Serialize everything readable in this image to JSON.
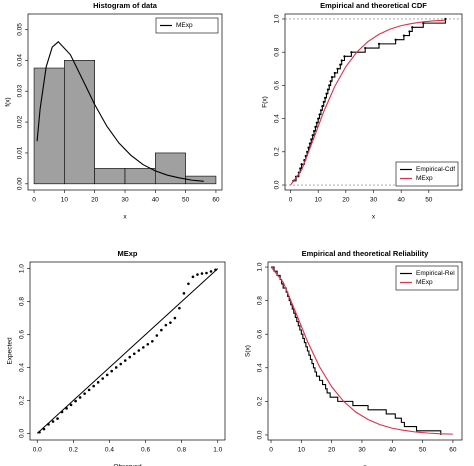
{
  "chart_data": [
    {
      "type": "histogram",
      "title": "Histogram of data",
      "xlabel": "x",
      "ylabel": "f(x)",
      "bins": [
        0,
        10,
        20,
        30,
        40,
        50,
        60
      ],
      "values": [
        0.0375,
        0.04,
        0.005,
        0.005,
        0.01,
        0.0025
      ],
      "color": "#a0a0a0",
      "xlim": [
        -2,
        62
      ],
      "ylim": [
        -0.002,
        0.055
      ],
      "xticks": [
        0,
        10,
        20,
        30,
        40,
        50,
        60
      ],
      "yticks": [
        {
          "value": 0,
          "label": "0.00"
        },
        0.01,
        0.02,
        0.03,
        0.04,
        0.05
      ],
      "series": [
        {
          "name": "MExp",
          "color": "#000000",
          "x": [
            1,
            2,
            4,
            6,
            8,
            12,
            16,
            20,
            24,
            28,
            32,
            36,
            40,
            44,
            48,
            52,
            56
          ],
          "values": [
            0.0138,
            0.0243,
            0.0379,
            0.0443,
            0.046,
            0.0418,
            0.0338,
            0.0257,
            0.0187,
            0.0132,
            0.0092,
            0.0062,
            0.0042,
            0.0028,
            0.0019,
            0.0012,
            0.0008
          ]
        }
      ],
      "legend": "topright"
    },
    {
      "type": "line",
      "title": "Empirical and theoretical CDF",
      "xlabel": "x",
      "ylabel": "F(x)",
      "xlim": [
        -2,
        62
      ],
      "ylim": [
        -0.03,
        1.03
      ],
      "xticks": [
        0,
        10,
        20,
        30,
        40,
        50
      ],
      "yticks": [
        {
          "value": 0,
          "label": "0.0"
        },
        0.2,
        0.4,
        0.6,
        0.8,
        {
          "value": 1,
          "label": "1.0"
        }
      ],
      "reference_lines": "dashed",
      "series": [
        {
          "name": "Empirical-Cdf",
          "color": "#000000",
          "drawstyle": "steps-post",
          "marker": true,
          "x": [
            1,
            2,
            3,
            3.5,
            4,
            5,
            5.5,
            6,
            6.5,
            7,
            7.5,
            8,
            8.5,
            9,
            9.5,
            10,
            10.5,
            11,
            11.5,
            12,
            12.5,
            13,
            13.5,
            14,
            14.5,
            15,
            16,
            17,
            18,
            18.5,
            19.5,
            22,
            27,
            32,
            38,
            41,
            43,
            44,
            48,
            56
          ],
          "values": [
            0.025,
            0.05,
            0.075,
            0.1,
            0.125,
            0.15,
            0.175,
            0.2,
            0.225,
            0.25,
            0.275,
            0.3,
            0.325,
            0.35,
            0.375,
            0.4,
            0.425,
            0.45,
            0.475,
            0.5,
            0.525,
            0.55,
            0.575,
            0.6,
            0.625,
            0.65,
            0.675,
            0.7,
            0.725,
            0.75,
            0.775,
            0.8,
            0.825,
            0.85,
            0.875,
            0.9,
            0.925,
            0.95,
            0.975,
            1
          ]
        },
        {
          "name": "MExp",
          "color": "#e0304a",
          "x": [
            0,
            4,
            8,
            12,
            16,
            20,
            24,
            28,
            32,
            36,
            40,
            44,
            48,
            52,
            56
          ],
          "values": [
            0,
            0.09,
            0.264,
            0.442,
            0.594,
            0.713,
            0.801,
            0.864,
            0.908,
            0.939,
            0.96,
            0.973,
            0.983,
            0.989,
            0.993
          ]
        }
      ],
      "legend": "bottomright"
    },
    {
      "type": "scatter",
      "title": "MExp",
      "xlabel": "Observed",
      "ylabel": "Expected",
      "color": "#000000",
      "xlim": [
        -0.04,
        1.04
      ],
      "ylim": [
        -0.04,
        1.04
      ],
      "xticks": [
        {
          "value": 0,
          "label": "0.0"
        },
        0.2,
        0.4,
        0.6,
        0.8,
        {
          "value": 1,
          "label": "1.0"
        }
      ],
      "yticks": [
        {
          "value": 0,
          "label": "0.0"
        },
        0.2,
        0.4,
        0.6,
        0.8,
        {
          "value": 1,
          "label": "1.0"
        }
      ],
      "reference_lines": "diagonal",
      "x": [
        0.0125,
        0.0375,
        0.0625,
        0.0875,
        0.1125,
        0.1375,
        0.1625,
        0.1875,
        0.2125,
        0.2375,
        0.2625,
        0.2875,
        0.3125,
        0.3375,
        0.3625,
        0.3875,
        0.4125,
        0.4375,
        0.4625,
        0.4875,
        0.5125,
        0.5375,
        0.5625,
        0.5875,
        0.6125,
        0.6375,
        0.6625,
        0.6875,
        0.7125,
        0.7375,
        0.7625,
        0.7875,
        0.8125,
        0.8375,
        0.8625,
        0.8875,
        0.9125,
        0.9375,
        0.9625,
        0.9875
      ],
      "values": [
        0.007,
        0.026,
        0.055,
        0.072,
        0.09,
        0.13,
        0.152,
        0.173,
        0.196,
        0.218,
        0.241,
        0.264,
        0.287,
        0.31,
        0.333,
        0.355,
        0.378,
        0.4,
        0.421,
        0.442,
        0.463,
        0.483,
        0.503,
        0.522,
        0.541,
        0.559,
        0.594,
        0.627,
        0.657,
        0.672,
        0.7,
        0.76,
        0.85,
        0.908,
        0.95,
        0.964,
        0.97,
        0.973,
        0.983,
        0.993
      ]
    },
    {
      "type": "line",
      "title": "Empirical and theoretical Reliability",
      "xlabel": "x",
      "ylabel": "S(x)",
      "xlim": [
        -1,
        63
      ],
      "ylim": [
        -0.03,
        1.03
      ],
      "xticks": [
        0,
        10,
        20,
        30,
        40,
        50,
        60
      ],
      "yticks": [
        {
          "value": 0,
          "label": "0.0"
        },
        0.2,
        0.4,
        0.6,
        0.8,
        {
          "value": 1,
          "label": "1.0"
        }
      ],
      "series": [
        {
          "name": "Empirical-Rel",
          "color": "#000000",
          "drawstyle": "steps-post",
          "x": [
            0,
            1,
            2,
            3,
            3.5,
            4,
            5,
            5.5,
            6,
            6.5,
            7,
            7.5,
            8,
            8.5,
            9,
            9.5,
            10,
            10.5,
            11,
            11.5,
            12,
            12.5,
            13,
            13.5,
            14,
            14.5,
            15,
            16,
            17,
            18,
            18.5,
            19.5,
            22,
            27,
            32,
            38,
            41,
            43,
            44,
            48,
            56
          ],
          "values": [
            1,
            0.975,
            0.95,
            0.925,
            0.9,
            0.875,
            0.85,
            0.825,
            0.8,
            0.775,
            0.75,
            0.725,
            0.7,
            0.675,
            0.65,
            0.625,
            0.6,
            0.575,
            0.55,
            0.525,
            0.5,
            0.475,
            0.45,
            0.425,
            0.4,
            0.375,
            0.35,
            0.325,
            0.3,
            0.275,
            0.25,
            0.225,
            0.2,
            0.175,
            0.15,
            0.125,
            0.1,
            0.075,
            0.05,
            0.025,
            0
          ]
        },
        {
          "name": "MExp",
          "color": "#e0304a",
          "x": [
            0,
            4,
            8,
            12,
            16,
            20,
            24,
            28,
            32,
            36,
            40,
            44,
            48,
            52,
            56,
            60
          ],
          "values": [
            1,
            0.91,
            0.736,
            0.558,
            0.406,
            0.287,
            0.199,
            0.136,
            0.092,
            0.061,
            0.04,
            0.027,
            0.017,
            0.011,
            0.007,
            0.005
          ]
        }
      ],
      "legend": "topright"
    }
  ]
}
